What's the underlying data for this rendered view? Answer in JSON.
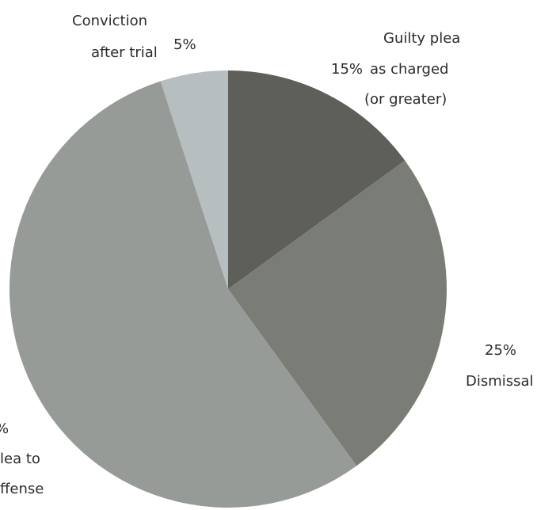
{
  "chart_data": {
    "type": "pie",
    "slices": [
      {
        "label": [
          "Guilty plea",
          "as charged",
          "(or greater)"
        ],
        "value": 15,
        "pct_label": "15%",
        "color": "#5d5f58"
      },
      {
        "label": [
          "Dismissal"
        ],
        "value": 25,
        "pct_label": "25%",
        "color": "#7a7d76"
      },
      {
        "label": [
          "lea to",
          "ffense"
        ],
        "value": 55,
        "pct_label": "%",
        "color": "#979b97"
      },
      {
        "label": [
          "Conviction",
          "after trial"
        ],
        "value": 5,
        "pct_label": "5%",
        "color": "#b6bebf"
      }
    ]
  }
}
